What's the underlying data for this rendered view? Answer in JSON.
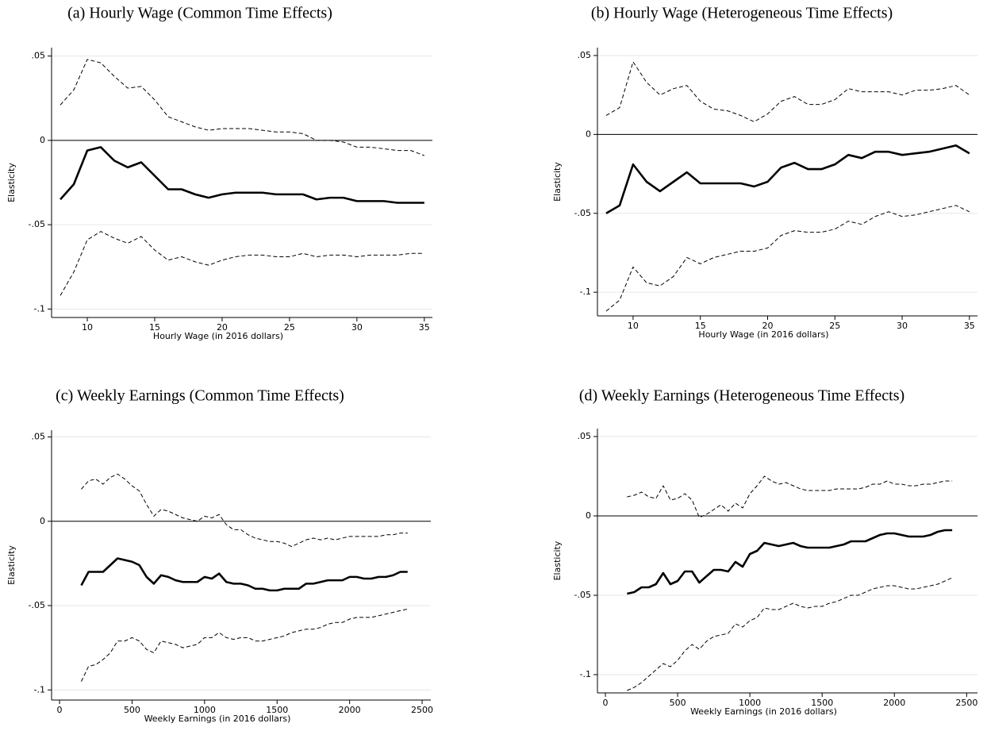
{
  "chart_data": [
    {
      "type": "line",
      "title": "(a) Hourly Wage (Common Time Effects)",
      "xlabel": "Hourly Wage (in 2016 dollars)",
      "ylabel": "Elasticity",
      "x": [
        8,
        9,
        10,
        11,
        12,
        13,
        14,
        15,
        16,
        17,
        18,
        19,
        20,
        21,
        22,
        23,
        24,
        25,
        26,
        27,
        28,
        29,
        30,
        31,
        32,
        33,
        34,
        35
      ],
      "series": [
        {
          "color": "#000000",
          "style": "solid",
          "values": [
            -0.035,
            -0.026,
            -0.006,
            -0.004,
            -0.012,
            -0.016,
            -0.013,
            -0.021,
            -0.029,
            -0.029,
            -0.032,
            -0.034,
            -0.032,
            -0.031,
            -0.031,
            -0.031,
            -0.032,
            -0.032,
            -0.032,
            -0.035,
            -0.034,
            -0.034,
            -0.036,
            -0.036,
            -0.036,
            -0.037,
            -0.037,
            -0.037
          ]
        },
        {
          "color": "#000000",
          "style": "dashed",
          "values": [
            0.021,
            0.03,
            0.048,
            0.046,
            0.038,
            0.031,
            0.032,
            0.024,
            0.014,
            0.011,
            0.008,
            0.006,
            0.007,
            0.007,
            0.007,
            0.006,
            0.005,
            0.005,
            0.004,
            0.0,
            0.0,
            -0.001,
            -0.004,
            -0.004,
            -0.005,
            -0.006,
            -0.006,
            -0.009
          ]
        },
        {
          "color": "#000000",
          "style": "dashed",
          "values": [
            -0.092,
            -0.078,
            -0.059,
            -0.054,
            -0.058,
            -0.061,
            -0.057,
            -0.065,
            -0.071,
            -0.069,
            -0.072,
            -0.074,
            -0.071,
            -0.069,
            -0.068,
            -0.068,
            -0.069,
            -0.069,
            -0.067,
            -0.069,
            -0.068,
            -0.068,
            -0.069,
            -0.068,
            -0.068,
            -0.068,
            -0.067,
            -0.067
          ]
        }
      ],
      "hline": 0,
      "xlim": [
        7.35,
        35.6
      ],
      "ylim": [
        -0.105,
        0.055
      ],
      "xticks": [
        10,
        15,
        20,
        25,
        30,
        35
      ],
      "yticks": [
        {
          "value": -0.1,
          "label": "-.1"
        },
        {
          "value": -0.05,
          "label": "-.05"
        },
        {
          "value": 0,
          "label": "0"
        },
        {
          "value": 0.05,
          "label": ".05"
        }
      ],
      "grid": true
    },
    {
      "type": "line",
      "title": "(b) Hourly Wage (Heterogeneous Time Effects)",
      "xlabel": "Hourly Wage (in 2016 dollars)",
      "ylabel": "Elasticity",
      "x": [
        8,
        9,
        10,
        11,
        12,
        13,
        14,
        15,
        16,
        17,
        18,
        19,
        20,
        21,
        22,
        23,
        24,
        25,
        26,
        27,
        28,
        29,
        30,
        31,
        32,
        33,
        34,
        35
      ],
      "series": [
        {
          "color": "#000000",
          "style": "solid",
          "values": [
            -0.05,
            -0.045,
            -0.019,
            -0.03,
            -0.036,
            -0.03,
            -0.024,
            -0.031,
            -0.031,
            -0.031,
            -0.031,
            -0.033,
            -0.03,
            -0.021,
            -0.018,
            -0.022,
            -0.022,
            -0.019,
            -0.013,
            -0.015,
            -0.011,
            -0.011,
            -0.013,
            -0.012,
            -0.011,
            -0.009,
            -0.007,
            -0.012
          ]
        },
        {
          "color": "#000000",
          "style": "dashed",
          "values": [
            0.012,
            0.017,
            0.046,
            0.033,
            0.025,
            0.029,
            0.031,
            0.021,
            0.016,
            0.015,
            0.012,
            0.008,
            0.013,
            0.021,
            0.024,
            0.019,
            0.019,
            0.022,
            0.029,
            0.027,
            0.027,
            0.027,
            0.025,
            0.028,
            0.028,
            0.029,
            0.031,
            0.025
          ]
        },
        {
          "color": "#000000",
          "style": "dashed",
          "values": [
            -0.112,
            -0.105,
            -0.084,
            -0.094,
            -0.096,
            -0.09,
            -0.078,
            -0.082,
            -0.078,
            -0.076,
            -0.074,
            -0.074,
            -0.072,
            -0.064,
            -0.061,
            -0.062,
            -0.062,
            -0.06,
            -0.055,
            -0.057,
            -0.052,
            -0.049,
            -0.052,
            -0.051,
            -0.049,
            -0.047,
            -0.045,
            -0.049
          ]
        }
      ],
      "hline": 0,
      "xlim": [
        7.35,
        35.6
      ],
      "ylim": [
        -0.115,
        0.055
      ],
      "xticks": [
        10,
        15,
        20,
        25,
        30,
        35
      ],
      "yticks": [
        {
          "value": -0.1,
          "label": "-.1"
        },
        {
          "value": -0.05,
          "label": "-.05"
        },
        {
          "value": 0,
          "label": "0"
        },
        {
          "value": 0.05,
          "label": ".05"
        }
      ],
      "grid": true
    },
    {
      "type": "line",
      "title": "(c) Weekly Earnings (Common Time Effects)",
      "xlabel": "Weekly Earnings (in 2016 dollars)",
      "ylabel": "Elasticity",
      "x": [
        150,
        200,
        250,
        300,
        350,
        400,
        450,
        500,
        550,
        600,
        650,
        700,
        750,
        800,
        850,
        900,
        950,
        1000,
        1050,
        1100,
        1150,
        1200,
        1250,
        1300,
        1350,
        1400,
        1450,
        1500,
        1550,
        1600,
        1650,
        1700,
        1750,
        1800,
        1850,
        1900,
        1950,
        2000,
        2050,
        2100,
        2150,
        2200,
        2250,
        2300,
        2350,
        2400
      ],
      "series": [
        {
          "color": "#000000",
          "style": "solid",
          "values": [
            -0.038,
            -0.03,
            -0.03,
            -0.03,
            -0.026,
            -0.022,
            -0.023,
            -0.024,
            -0.026,
            -0.033,
            -0.037,
            -0.032,
            -0.033,
            -0.035,
            -0.036,
            -0.036,
            -0.036,
            -0.033,
            -0.034,
            -0.031,
            -0.036,
            -0.037,
            -0.037,
            -0.038,
            -0.04,
            -0.04,
            -0.041,
            -0.041,
            -0.04,
            -0.04,
            -0.04,
            -0.037,
            -0.037,
            -0.036,
            -0.035,
            -0.035,
            -0.035,
            -0.033,
            -0.033,
            -0.034,
            -0.034,
            -0.033,
            -0.033,
            -0.032,
            -0.03,
            -0.03
          ]
        },
        {
          "color": "#000000",
          "style": "dashed",
          "values": [
            0.019,
            0.024,
            0.025,
            0.022,
            0.026,
            0.028,
            0.025,
            0.021,
            0.018,
            0.01,
            0.003,
            0.007,
            0.006,
            0.004,
            0.002,
            0.001,
            0.0,
            0.003,
            0.002,
            0.004,
            -0.002,
            -0.005,
            -0.005,
            -0.008,
            -0.01,
            -0.011,
            -0.012,
            -0.012,
            -0.013,
            -0.015,
            -0.013,
            -0.011,
            -0.01,
            -0.011,
            -0.01,
            -0.011,
            -0.01,
            -0.009,
            -0.009,
            -0.009,
            -0.009,
            -0.009,
            -0.008,
            -0.008,
            -0.007,
            -0.007
          ]
        },
        {
          "color": "#000000",
          "style": "dashed",
          "values": [
            -0.095,
            -0.086,
            -0.085,
            -0.082,
            -0.078,
            -0.071,
            -0.071,
            -0.069,
            -0.071,
            -0.076,
            -0.078,
            -0.071,
            -0.072,
            -0.073,
            -0.075,
            -0.074,
            -0.073,
            -0.069,
            -0.069,
            -0.066,
            -0.069,
            -0.07,
            -0.069,
            -0.069,
            -0.071,
            -0.071,
            -0.07,
            -0.069,
            -0.068,
            -0.066,
            -0.065,
            -0.064,
            -0.064,
            -0.063,
            -0.061,
            -0.06,
            -0.06,
            -0.058,
            -0.057,
            -0.057,
            -0.057,
            -0.056,
            -0.055,
            -0.054,
            -0.053,
            -0.052
          ]
        }
      ],
      "hline": 0,
      "xlim": [
        -55,
        2560
      ],
      "ylim": [
        -0.106,
        0.054
      ],
      "xticks": [
        0,
        500,
        1000,
        1500,
        2000,
        2500
      ],
      "yticks": [
        {
          "value": -0.1,
          "label": "-.1"
        },
        {
          "value": -0.05,
          "label": "-.05"
        },
        {
          "value": 0,
          "label": "0"
        },
        {
          "value": 0.05,
          "label": ".05"
        }
      ],
      "grid": true
    },
    {
      "type": "line",
      "title": "(d) Weekly Earnings (Heterogeneous Time Effects)",
      "xlabel": "Weekly Earnings (in 2016 dollars)",
      "ylabel": "Elasticity",
      "x": [
        150,
        200,
        250,
        300,
        350,
        400,
        450,
        500,
        550,
        600,
        650,
        700,
        750,
        800,
        850,
        900,
        950,
        1000,
        1050,
        1100,
        1150,
        1200,
        1250,
        1300,
        1350,
        1400,
        1450,
        1500,
        1550,
        1600,
        1650,
        1700,
        1750,
        1800,
        1850,
        1900,
        1950,
        2000,
        2050,
        2100,
        2150,
        2200,
        2250,
        2300,
        2350,
        2400
      ],
      "series": [
        {
          "color": "#000000",
          "style": "solid",
          "values": [
            -0.049,
            -0.048,
            -0.045,
            -0.045,
            -0.043,
            -0.036,
            -0.043,
            -0.041,
            -0.035,
            -0.035,
            -0.042,
            -0.038,
            -0.034,
            -0.034,
            -0.035,
            -0.029,
            -0.032,
            -0.024,
            -0.022,
            -0.017,
            -0.018,
            -0.019,
            -0.018,
            -0.017,
            -0.019,
            -0.02,
            -0.02,
            -0.02,
            -0.02,
            -0.019,
            -0.018,
            -0.016,
            -0.016,
            -0.016,
            -0.014,
            -0.012,
            -0.011,
            -0.011,
            -0.012,
            -0.013,
            -0.013,
            -0.013,
            -0.012,
            -0.01,
            -0.009,
            -0.009
          ]
        },
        {
          "color": "#000000",
          "style": "dashed",
          "values": [
            0.012,
            0.013,
            0.015,
            0.012,
            0.011,
            0.019,
            0.01,
            0.011,
            0.014,
            0.01,
            -0.001,
            0.001,
            0.004,
            0.007,
            0.003,
            0.008,
            0.005,
            0.014,
            0.019,
            0.025,
            0.022,
            0.02,
            0.021,
            0.019,
            0.017,
            0.016,
            0.016,
            0.016,
            0.016,
            0.017,
            0.017,
            0.017,
            0.017,
            0.018,
            0.02,
            0.02,
            0.022,
            0.02,
            0.02,
            0.019,
            0.019,
            0.02,
            0.02,
            0.021,
            0.022,
            0.022
          ]
        },
        {
          "color": "#000000",
          "style": "dashed",
          "values": [
            -0.11,
            -0.108,
            -0.105,
            -0.101,
            -0.097,
            -0.093,
            -0.095,
            -0.091,
            -0.085,
            -0.081,
            -0.084,
            -0.079,
            -0.076,
            -0.075,
            -0.074,
            -0.068,
            -0.07,
            -0.066,
            -0.064,
            -0.058,
            -0.059,
            -0.059,
            -0.057,
            -0.055,
            -0.057,
            -0.058,
            -0.057,
            -0.057,
            -0.055,
            -0.054,
            -0.052,
            -0.05,
            -0.05,
            -0.048,
            -0.046,
            -0.045,
            -0.044,
            -0.044,
            -0.045,
            -0.046,
            -0.046,
            -0.045,
            -0.044,
            -0.043,
            -0.041,
            -0.039
          ]
        }
      ],
      "hline": 0,
      "xlim": [
        -55,
        2575
      ],
      "ylim": [
        -0.1115,
        0.055
      ],
      "xticks": [
        0,
        500,
        1000,
        1500,
        2000,
        2500
      ],
      "yticks": [
        {
          "value": -0.1,
          "label": "-.1"
        },
        {
          "value": -0.05,
          "label": "-.05"
        },
        {
          "value": 0,
          "label": "0"
        },
        {
          "value": 0.05,
          "label": ".05"
        }
      ],
      "grid": true
    }
  ]
}
